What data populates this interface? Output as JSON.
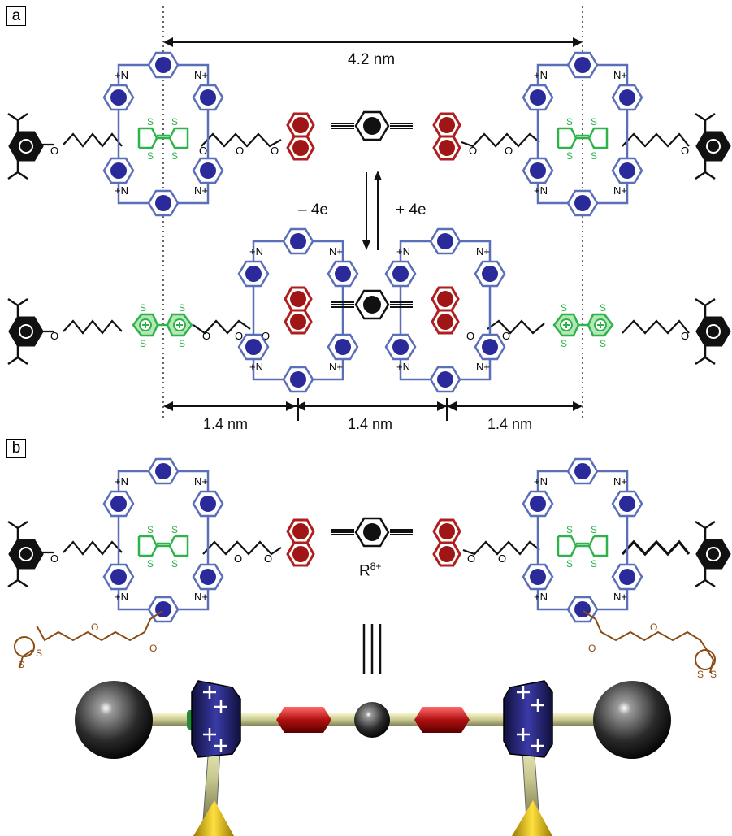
{
  "panels": {
    "a": {
      "label": "a",
      "dimension_top": "4.2 nm",
      "dimension_bottom": [
        "1.4 nm",
        "1.4 nm",
        "1.4 nm"
      ],
      "oxidation_label": "– 4e",
      "reduction_label": "+ 4e"
    },
    "b": {
      "label": "b",
      "charge_label": "R",
      "charge_superscript": "8+"
    }
  },
  "atoms": {
    "oxygen": "O",
    "sulfur": "S",
    "nitrogen_cation": "N+",
    "cation_nitrogen": "+N"
  },
  "colors": {
    "viologen_ring": "#2a2a9a",
    "cbpqt_frame": "#5a6fb8",
    "ttf_green": "#2db34a",
    "dnp_red": "#b01e1e",
    "stopper_black": "#111111",
    "linker_brown": "#8a4a12",
    "model_shaft": "#d8d8a0",
    "model_gold": "#e3c21a"
  }
}
